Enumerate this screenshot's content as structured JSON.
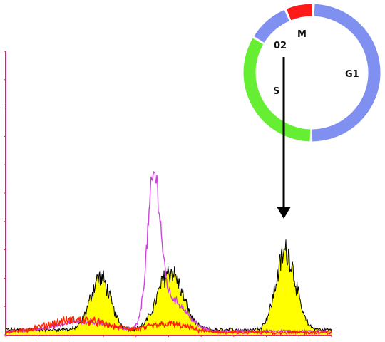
{
  "chart_data": {
    "type": "area",
    "title": "",
    "xlabel": "",
    "ylabel": "",
    "grid": false,
    "xlim": [
      0,
      1000
    ],
    "ylim": [
      0,
      1000
    ],
    "series": [
      {
        "fill": "#ffff00",
        "stroke": "#000000",
        "peaks": [
          {
            "center": 290,
            "height": 185,
            "width": 30
          },
          {
            "center": 505,
            "height": 205,
            "width": 38
          },
          {
            "center": 860,
            "height": 275,
            "width": 30
          }
        ],
        "baseline": 18,
        "noise": 0.18
      },
      {
        "stroke": "#cc44dd",
        "peaks": [
          {
            "center": 455,
            "height": 500,
            "width": 20
          },
          {
            "center": 510,
            "height": 110,
            "width": 45
          },
          {
            "center": 240,
            "height": 35,
            "width": 80
          }
        ],
        "baseline": 12,
        "noise": 0.1
      },
      {
        "stroke": "#ff2200",
        "peaks": [
          {
            "center": 220,
            "height": 45,
            "width": 90
          },
          {
            "center": 500,
            "height": 30,
            "width": 60
          }
        ],
        "baseline": 8,
        "noise": 0.3
      }
    ]
  },
  "cycle_ring": {
    "labels": {
      "m": "M",
      "g1": "G1",
      "s": "S",
      "g2": "02"
    },
    "colors": {
      "m": "#ff1a1a",
      "g1": "#8090f0",
      "s": "#66ee33",
      "g2": "#8090f0"
    }
  },
  "colors": {
    "axis": "#dd2266",
    "arrow": "#000000"
  }
}
